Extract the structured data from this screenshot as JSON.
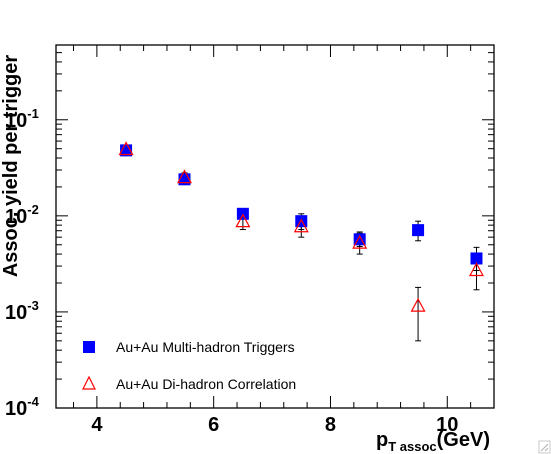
{
  "chart_data": {
    "type": "scatter",
    "title": "",
    "xlabel_main": "p",
    "xlabel_sub": "T assoc",
    "xlabel_unit": "(GeV)",
    "ylabel": "Assoc. yield per trigger",
    "xlim": [
      3.3,
      10.8
    ],
    "ylim": [
      0.0001,
      0.6
    ],
    "yscale": "log",
    "grid": false,
    "legend_position": "bottom-left",
    "xticks": [
      {
        "value": 4,
        "label": "4"
      },
      {
        "value": 6,
        "label": "6"
      },
      {
        "value": 8,
        "label": "8"
      },
      {
        "value": 10,
        "label": "10"
      }
    ],
    "yticks": [
      {
        "value": 0.0001,
        "base": "10",
        "exp": "-4"
      },
      {
        "value": 0.001,
        "base": "10",
        "exp": "-3"
      },
      {
        "value": 0.01,
        "base": "10",
        "exp": "-2"
      },
      {
        "value": 0.1,
        "base": "10",
        "exp": "-1"
      }
    ],
    "series": [
      {
        "name": "Au+Au Multi-hadron Triggers",
        "marker": "square",
        "color": "#0000ff",
        "points": [
          {
            "x": 4.5,
            "y": 0.048,
            "ylo": 0.043,
            "yhi": 0.053
          },
          {
            "x": 5.5,
            "y": 0.024,
            "ylo": 0.0215,
            "yhi": 0.0265
          },
          {
            "x": 6.5,
            "y": 0.0105,
            "ylo": 0.0093,
            "yhi": 0.0118
          },
          {
            "x": 7.5,
            "y": 0.0088,
            "ylo": 0.0072,
            "yhi": 0.0105
          },
          {
            "x": 8.5,
            "y": 0.0057,
            "ylo": 0.0048,
            "yhi": 0.0068
          },
          {
            "x": 9.5,
            "y": 0.0071,
            "ylo": 0.0055,
            "yhi": 0.0088
          },
          {
            "x": 10.5,
            "y": 0.0036,
            "ylo": 0.0027,
            "yhi": 0.0047
          }
        ]
      },
      {
        "name": "Au+Au Di-hadron Correlation",
        "marker": "open-triangle",
        "color": "#ff0000",
        "points": [
          {
            "x": 4.5,
            "y": 0.049,
            "ylo": 0.045,
            "yhi": 0.054
          },
          {
            "x": 5.5,
            "y": 0.025,
            "ylo": 0.022,
            "yhi": 0.028
          },
          {
            "x": 6.5,
            "y": 0.0087,
            "ylo": 0.0072,
            "yhi": 0.0105
          },
          {
            "x": 7.5,
            "y": 0.0077,
            "ylo": 0.006,
            "yhi": 0.0094
          },
          {
            "x": 8.5,
            "y": 0.0052,
            "ylo": 0.004,
            "yhi": 0.0066
          },
          {
            "x": 9.5,
            "y": 0.00115,
            "ylo": 0.0005,
            "yhi": 0.0018
          },
          {
            "x": 10.5,
            "y": 0.0027,
            "ylo": 0.0017,
            "yhi": 0.0037
          }
        ]
      }
    ]
  }
}
